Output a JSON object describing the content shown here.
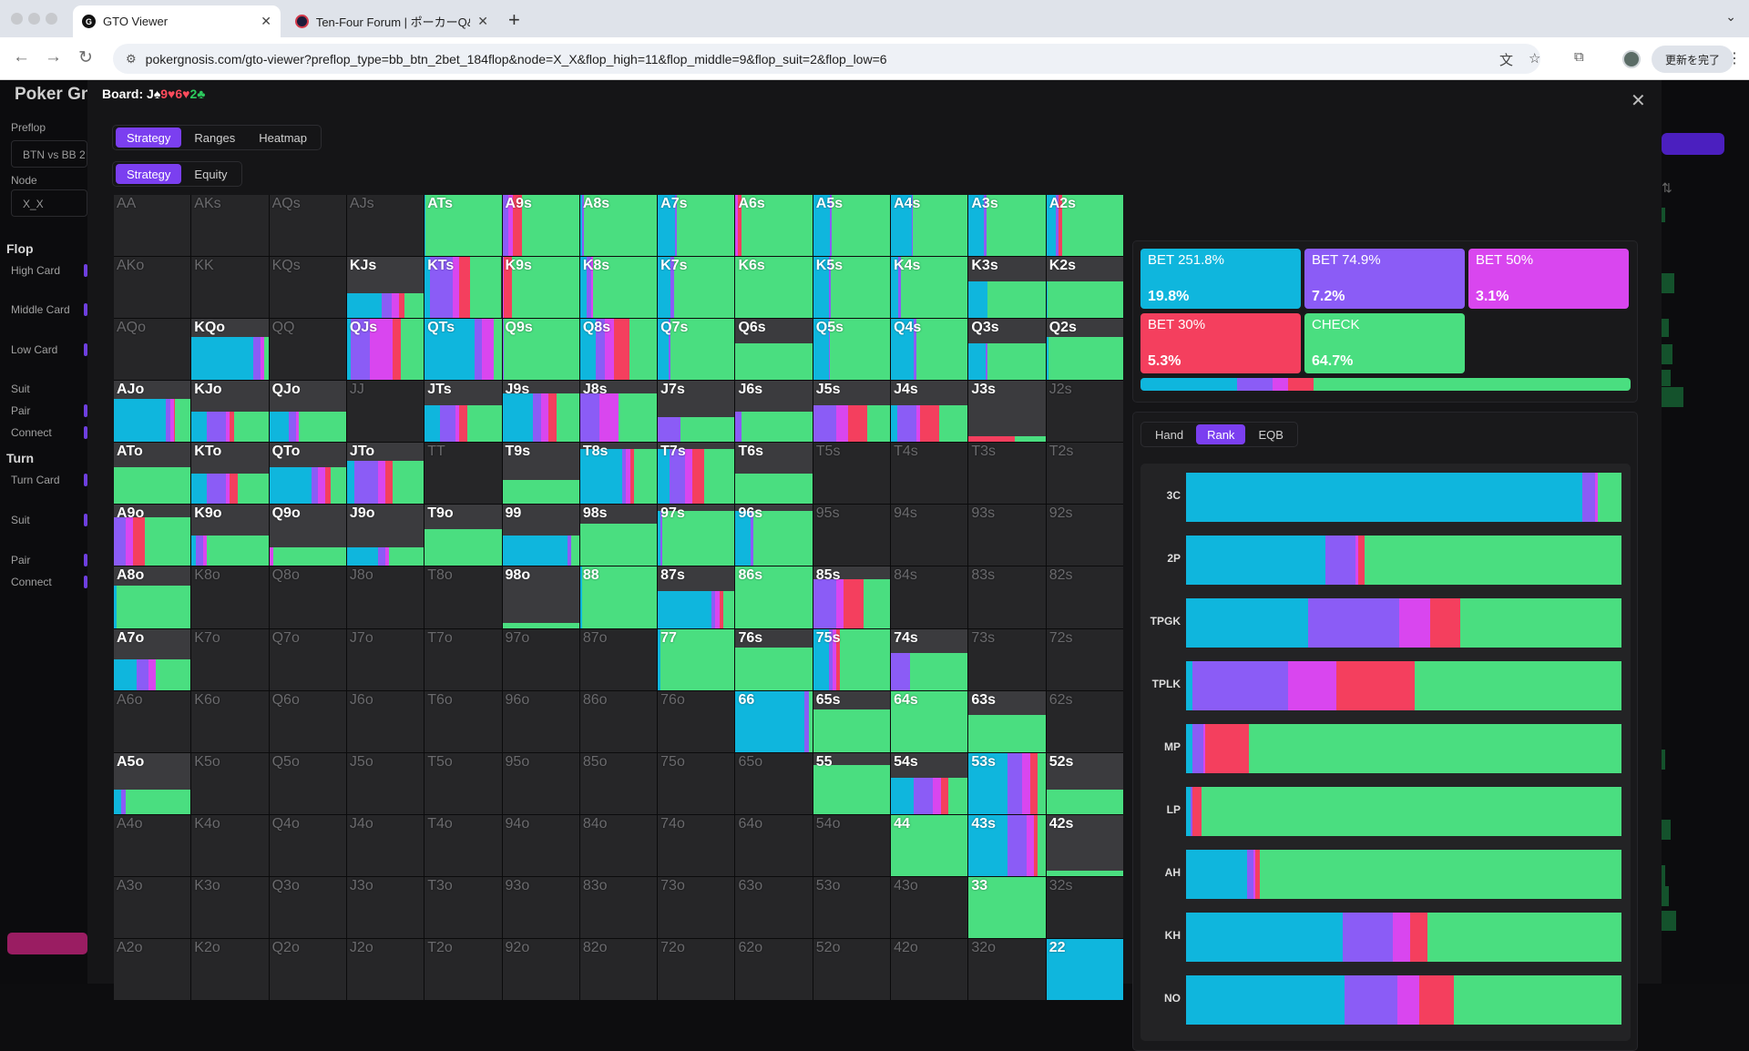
{
  "browser": {
    "tabs": [
      {
        "favicon": "G",
        "title": "GTO Viewer",
        "active": true
      },
      {
        "favicon": "",
        "title": "Ten-Four Forum | ポーカーQ&A",
        "active": false
      }
    ],
    "url": "pokergnosis.com/gto-viewer?preflop_type=bb_btn_2bet_184flop&node=X_X&flop_high=11&flop_middle=9&flop_suit=2&flop_low=6",
    "update_label": "更新を完了"
  },
  "sidebar": {
    "brand": "Poker Gn",
    "preflop_label": "Preflop",
    "preflop_value": "BTN vs BB 2",
    "node_label": "Node",
    "node_value": "X_X",
    "flop_heading": "Flop",
    "flop_items": [
      "High Card",
      "Middle Card",
      "Low Card",
      "Suit",
      "Pair",
      "Connect"
    ],
    "turn_heading": "Turn",
    "turn_items": [
      "Turn Card",
      "Suit",
      "Pair",
      "Connect"
    ]
  },
  "modal": {
    "board_label": "Board:",
    "board_cards": [
      {
        "rank": "J",
        "suit": "♠",
        "color": "#ffffff"
      },
      {
        "rank": "9",
        "suit": "♥",
        "color": "#ff4b5c"
      },
      {
        "rank": "6",
        "suit": "♥",
        "color": "#ff4b5c"
      },
      {
        "rank": "2",
        "suit": "♣",
        "color": "#2cc95d"
      }
    ],
    "view_tabs": [
      "Strategy",
      "Ranges",
      "Heatmap"
    ],
    "view_active": "Strategy",
    "sub_tabs": [
      "Strategy",
      "Equity"
    ],
    "sub_active": "Strategy",
    "rank_tabs": [
      "Hand",
      "Rank",
      "EQB"
    ],
    "rank_active": "Rank"
  },
  "colors": {
    "bet251": "#0fb6dd",
    "bet75": "#8b5cf6",
    "bet50": "#d946ef",
    "bet30": "#f43f5e",
    "check": "#4ade80"
  },
  "actions": [
    {
      "label": "BET 251.8%",
      "pct": "19.8%",
      "freq": 19.8,
      "color": "#0fb6dd"
    },
    {
      "label": "BET 74.9%",
      "pct": "7.2%",
      "freq": 7.2,
      "color": "#8b5cf6"
    },
    {
      "label": "BET 50%",
      "pct": "3.1%",
      "freq": 3.1,
      "color": "#d946ef"
    },
    {
      "label": "BET 30%",
      "pct": "5.3%",
      "freq": 5.3,
      "color": "#f43f5e"
    },
    {
      "label": "CHECK",
      "pct": "64.7%",
      "freq": 64.7,
      "color": "#4ade80"
    }
  ],
  "rank_rows": [
    {
      "label": "3C",
      "mix": [
        91,
        3,
        0.5,
        0,
        5.5
      ]
    },
    {
      "label": "2P",
      "mix": [
        32,
        7,
        0.5,
        1.5,
        59
      ]
    },
    {
      "label": "TPGK",
      "mix": [
        28,
        21,
        7,
        7,
        37
      ]
    },
    {
      "label": "TPLK",
      "mix": [
        1.5,
        22,
        11,
        18,
        47.5
      ]
    },
    {
      "label": "MP",
      "mix": [
        1.5,
        2.5,
        0.5,
        10,
        85.5
      ]
    },
    {
      "label": "LP",
      "mix": [
        1,
        0.5,
        0,
        2,
        96.5
      ]
    },
    {
      "label": "AH",
      "mix": [
        14,
        1.5,
        0.5,
        1,
        83
      ]
    },
    {
      "label": "KH",
      "mix": [
        36,
        11.5,
        4,
        4,
        44.5
      ]
    },
    {
      "label": "NO",
      "mix": [
        36.5,
        12,
        5,
        8,
        38.5
      ]
    }
  ],
  "hands": [
    {
      "n": "AA",
      "f": 0
    },
    {
      "n": "AKs",
      "f": 0
    },
    {
      "n": "AQs",
      "f": 0
    },
    {
      "n": "AJs",
      "f": 0
    },
    {
      "n": "ATs",
      "f": 1,
      "m": [
        1,
        0,
        0,
        0,
        99
      ]
    },
    {
      "n": "A9s",
      "f": 1,
      "m": [
        0,
        8,
        6,
        12,
        74
      ]
    },
    {
      "n": "A8s",
      "f": 1,
      "m": [
        3,
        2,
        0,
        0,
        95
      ]
    },
    {
      "n": "A7s",
      "f": 1,
      "m": [
        22,
        3,
        0,
        0,
        75
      ]
    },
    {
      "n": "A6s",
      "f": 1,
      "m": [
        0,
        0,
        3,
        5,
        92
      ]
    },
    {
      "n": "A5s",
      "f": 1,
      "m": [
        22,
        2,
        0,
        0,
        76
      ]
    },
    {
      "n": "A4s",
      "f": 1,
      "m": [
        27,
        2,
        0,
        0,
        71
      ]
    },
    {
      "n": "A3s",
      "f": 1,
      "m": [
        20,
        3,
        0,
        0,
        77
      ]
    },
    {
      "n": "A2s",
      "f": 1,
      "m": [
        12,
        4,
        0,
        4,
        80
      ]
    },
    {
      "n": "AKo",
      "f": 0
    },
    {
      "n": "KK",
      "f": 0
    },
    {
      "n": "KQs",
      "f": 0
    },
    {
      "n": "KJs",
      "f": 0.4,
      "m": [
        45,
        13,
        10,
        7,
        25
      ]
    },
    {
      "n": "KTs",
      "f": 1,
      "m": [
        7,
        30,
        8,
        14,
        41
      ]
    },
    {
      "n": "K9s",
      "f": 1,
      "m": [
        0,
        0,
        2,
        10,
        88
      ]
    },
    {
      "n": "K8s",
      "f": 1,
      "m": [
        9,
        5,
        3,
        0,
        83
      ]
    },
    {
      "n": "K7s",
      "f": 1,
      "m": [
        17,
        4,
        0,
        0,
        79
      ]
    },
    {
      "n": "K6s",
      "f": 1,
      "m": [
        0,
        0,
        0,
        0,
        100
      ]
    },
    {
      "n": "K5s",
      "f": 1,
      "m": [
        20,
        3,
        0,
        0,
        77
      ]
    },
    {
      "n": "K4s",
      "f": 1,
      "m": [
        10,
        3,
        0,
        0,
        87
      ]
    },
    {
      "n": "K3s",
      "f": 0.6,
      "m": [
        24,
        0,
        0,
        0,
        76
      ]
    },
    {
      "n": "K2s",
      "f": 0.6,
      "m": [
        2,
        0,
        0,
        0,
        98
      ]
    },
    {
      "n": "AQo",
      "f": 0
    },
    {
      "n": "KQo",
      "f": 0.7,
      "m": [
        80,
        10,
        5,
        0,
        5
      ]
    },
    {
      "n": "QQ",
      "f": 0
    },
    {
      "n": "QJs",
      "f": 1,
      "m": [
        5,
        25,
        30,
        10,
        30
      ]
    },
    {
      "n": "QTs",
      "f": 1,
      "m": [
        65,
        10,
        15,
        0,
        10
      ]
    },
    {
      "n": "Q9s",
      "f": 1,
      "m": [
        0,
        2,
        0,
        0,
        98
      ]
    },
    {
      "n": "Q8s",
      "f": 1,
      "m": [
        20,
        12,
        12,
        20,
        36
      ]
    },
    {
      "n": "Q7s",
      "f": 1,
      "m": [
        14,
        2,
        0,
        0,
        84
      ]
    },
    {
      "n": "Q6s",
      "f": 0.6,
      "m": [
        0,
        0,
        0,
        0,
        100
      ]
    },
    {
      "n": "Q5s",
      "f": 1,
      "m": [
        20,
        2,
        0,
        0,
        78
      ]
    },
    {
      "n": "Q4s",
      "f": 1,
      "m": [
        30,
        3,
        0,
        0,
        67
      ]
    },
    {
      "n": "Q3s",
      "f": 0.6,
      "m": [
        22,
        3,
        0,
        0,
        75
      ]
    },
    {
      "n": "Q2s",
      "f": 0.7,
      "m": [
        3,
        0,
        0,
        0,
        97
      ]
    },
    {
      "n": "AJo",
      "f": 0.7,
      "m": [
        68,
        5,
        5,
        2,
        20
      ]
    },
    {
      "n": "KJo",
      "f": 0.5,
      "m": [
        20,
        25,
        5,
        5,
        45
      ]
    },
    {
      "n": "QJo",
      "f": 0.5,
      "m": [
        25,
        10,
        3,
        0,
        62
      ]
    },
    {
      "n": "JJ",
      "f": 0
    },
    {
      "n": "JTs",
      "f": 0.6,
      "m": [
        20,
        20,
        5,
        10,
        45
      ]
    },
    {
      "n": "J9s",
      "f": 0.8,
      "m": [
        40,
        10,
        10,
        10,
        30
      ]
    },
    {
      "n": "J8s",
      "f": 0.8,
      "m": [
        0,
        25,
        25,
        0,
        50
      ]
    },
    {
      "n": "J7s",
      "f": 0.4,
      "m": [
        0,
        30,
        0,
        0,
        70
      ]
    },
    {
      "n": "J6s",
      "f": 0.5,
      "m": [
        0,
        8,
        0,
        0,
        92
      ]
    },
    {
      "n": "J5s",
      "f": 0.6,
      "m": [
        0,
        30,
        15,
        25,
        30
      ]
    },
    {
      "n": "J4s",
      "f": 0.6,
      "m": [
        8,
        25,
        5,
        25,
        37
      ]
    },
    {
      "n": "J3s",
      "f": 0.1,
      "m": [
        0,
        0,
        0,
        60,
        40
      ]
    },
    {
      "n": "J2s",
      "f": 0
    },
    {
      "n": "ATo",
      "f": 0.6,
      "m": [
        0,
        0,
        0,
        0,
        100
      ]
    },
    {
      "n": "KTo",
      "f": 0.5,
      "m": [
        20,
        25,
        5,
        10,
        40
      ]
    },
    {
      "n": "QTo",
      "f": 0.6,
      "m": [
        55,
        8,
        10,
        7,
        20
      ]
    },
    {
      "n": "JTo",
      "f": 0.7,
      "m": [
        10,
        30,
        10,
        10,
        40
      ]
    },
    {
      "n": "TT",
      "f": 0
    },
    {
      "n": "T9s",
      "f": 0.4,
      "m": [
        0,
        0,
        0,
        0,
        100
      ]
    },
    {
      "n": "T8s",
      "f": 0.9,
      "m": [
        55,
        5,
        5,
        5,
        30
      ]
    },
    {
      "n": "T7s",
      "f": 0.9,
      "m": [
        15,
        20,
        10,
        15,
        40
      ]
    },
    {
      "n": "T6s",
      "f": 0.5,
      "m": [
        0,
        0,
        0,
        0,
        100
      ]
    },
    {
      "n": "T5s",
      "f": 0
    },
    {
      "n": "T4s",
      "f": 0
    },
    {
      "n": "T3s",
      "f": 0
    },
    {
      "n": "T2s",
      "f": 0
    },
    {
      "n": "A9o",
      "f": 0.8,
      "m": [
        0,
        15,
        10,
        15,
        60
      ]
    },
    {
      "n": "K9o",
      "f": 0.5,
      "m": [
        5,
        10,
        5,
        0,
        80
      ]
    },
    {
      "n": "Q9o",
      "f": 0.3,
      "m": [
        0,
        0,
        5,
        0,
        95
      ]
    },
    {
      "n": "J9o",
      "f": 0.3,
      "m": [
        40,
        10,
        5,
        0,
        45
      ]
    },
    {
      "n": "T9o",
      "f": 0.6,
      "m": [
        0,
        0,
        0,
        0,
        100
      ]
    },
    {
      "n": "99",
      "f": 0.5,
      "m": [
        85,
        5,
        0,
        0,
        10
      ]
    },
    {
      "n": "98s",
      "f": 0.7,
      "m": [
        0,
        0,
        0,
        0,
        100
      ]
    },
    {
      "n": "97s",
      "f": 0.9,
      "m": [
        3,
        3,
        0,
        0,
        94
      ]
    },
    {
      "n": "96s",
      "f": 0.9,
      "m": [
        20,
        3,
        0,
        0,
        77
      ]
    },
    {
      "n": "95s",
      "f": 0
    },
    {
      "n": "94s",
      "f": 0
    },
    {
      "n": "93s",
      "f": 0
    },
    {
      "n": "92s",
      "f": 0
    },
    {
      "n": "A8o",
      "f": 0.7,
      "m": [
        3,
        0,
        0,
        0,
        97
      ]
    },
    {
      "n": "K8o",
      "f": 0
    },
    {
      "n": "Q8o",
      "f": 0
    },
    {
      "n": "J8o",
      "f": 0
    },
    {
      "n": "T8o",
      "f": 0
    },
    {
      "n": "98o",
      "f": 0.08,
      "m": [
        0,
        0,
        0,
        0,
        100
      ]
    },
    {
      "n": "88",
      "f": 1,
      "m": [
        2,
        0,
        0,
        0,
        98
      ]
    },
    {
      "n": "87s",
      "f": 0.6,
      "m": [
        70,
        5,
        5,
        5,
        15
      ]
    },
    {
      "n": "86s",
      "f": 1,
      "m": [
        0,
        0,
        0,
        0,
        100
      ]
    },
    {
      "n": "85s",
      "f": 0.8,
      "m": [
        0,
        30,
        10,
        25,
        35
      ]
    },
    {
      "n": "84s",
      "f": 0
    },
    {
      "n": "83s",
      "f": 0
    },
    {
      "n": "82s",
      "f": 0
    },
    {
      "n": "A7o",
      "f": 0.5,
      "m": [
        30,
        15,
        10,
        0,
        45
      ]
    },
    {
      "n": "K7o",
      "f": 0
    },
    {
      "n": "Q7o",
      "f": 0
    },
    {
      "n": "J7o",
      "f": 0
    },
    {
      "n": "T7o",
      "f": 0
    },
    {
      "n": "97o",
      "f": 0
    },
    {
      "n": "87o",
      "f": 0
    },
    {
      "n": "77",
      "f": 1,
      "m": [
        3,
        0,
        0,
        0,
        97
      ]
    },
    {
      "n": "76s",
      "f": 0.7,
      "m": [
        0,
        0,
        0,
        0,
        100
      ]
    },
    {
      "n": "75s",
      "f": 1,
      "m": [
        20,
        5,
        5,
        5,
        65
      ]
    },
    {
      "n": "74s",
      "f": 0.6,
      "m": [
        0,
        25,
        0,
        0,
        75
      ]
    },
    {
      "n": "73s",
      "f": 0
    },
    {
      "n": "72s",
      "f": 0
    },
    {
      "n": "A6o",
      "f": 0
    },
    {
      "n": "K6o",
      "f": 0
    },
    {
      "n": "Q6o",
      "f": 0
    },
    {
      "n": "J6o",
      "f": 0
    },
    {
      "n": "T6o",
      "f": 0
    },
    {
      "n": "96o",
      "f": 0
    },
    {
      "n": "86o",
      "f": 0
    },
    {
      "n": "76o",
      "f": 0
    },
    {
      "n": "66",
      "f": 1,
      "m": [
        90,
        5,
        0,
        0,
        5
      ]
    },
    {
      "n": "65s",
      "f": 0.7,
      "m": [
        0,
        0,
        0,
        0,
        100
      ]
    },
    {
      "n": "64s",
      "f": 1,
      "m": [
        0,
        0,
        0,
        0,
        100
      ]
    },
    {
      "n": "63s",
      "f": 0.6,
      "m": [
        0,
        0,
        0,
        0,
        100
      ]
    },
    {
      "n": "62s",
      "f": 0
    },
    {
      "n": "A5o",
      "f": 0.4,
      "m": [
        10,
        5,
        0,
        0,
        85
      ]
    },
    {
      "n": "K5o",
      "f": 0
    },
    {
      "n": "Q5o",
      "f": 0
    },
    {
      "n": "J5o",
      "f": 0
    },
    {
      "n": "T5o",
      "f": 0
    },
    {
      "n": "95o",
      "f": 0
    },
    {
      "n": "85o",
      "f": 0
    },
    {
      "n": "75o",
      "f": 0
    },
    {
      "n": "65o",
      "f": 0
    },
    {
      "n": "55",
      "f": 0.8,
      "m": [
        0,
        0,
        0,
        0,
        100
      ]
    },
    {
      "n": "54s",
      "f": 0.6,
      "m": [
        30,
        25,
        10,
        10,
        25
      ]
    },
    {
      "n": "53s",
      "f": 1,
      "m": [
        50,
        20,
        10,
        10,
        10
      ]
    },
    {
      "n": "52s",
      "f": 0.4,
      "m": [
        0,
        0,
        0,
        0,
        100
      ]
    },
    {
      "n": "A4o",
      "f": 0
    },
    {
      "n": "K4o",
      "f": 0
    },
    {
      "n": "Q4o",
      "f": 0
    },
    {
      "n": "J4o",
      "f": 0
    },
    {
      "n": "T4o",
      "f": 0
    },
    {
      "n": "94o",
      "f": 0
    },
    {
      "n": "84o",
      "f": 0
    },
    {
      "n": "74o",
      "f": 0
    },
    {
      "n": "64o",
      "f": 0
    },
    {
      "n": "54o",
      "f": 0
    },
    {
      "n": "44",
      "f": 1,
      "m": [
        0,
        0,
        0,
        0,
        100
      ]
    },
    {
      "n": "43s",
      "f": 1,
      "m": [
        50,
        25,
        10,
        5,
        10
      ]
    },
    {
      "n": "42s",
      "f": 0.08,
      "m": [
        0,
        0,
        0,
        0,
        100
      ]
    },
    {
      "n": "A3o",
      "f": 0
    },
    {
      "n": "K3o",
      "f": 0
    },
    {
      "n": "Q3o",
      "f": 0
    },
    {
      "n": "J3o",
      "f": 0
    },
    {
      "n": "T3o",
      "f": 0
    },
    {
      "n": "93o",
      "f": 0
    },
    {
      "n": "83o",
      "f": 0
    },
    {
      "n": "73o",
      "f": 0
    },
    {
      "n": "63o",
      "f": 0
    },
    {
      "n": "53o",
      "f": 0
    },
    {
      "n": "43o",
      "f": 0
    },
    {
      "n": "33",
      "f": 1,
      "m": [
        0,
        0,
        0,
        0,
        100
      ]
    },
    {
      "n": "32s",
      "f": 0
    },
    {
      "n": "A2o",
      "f": 0
    },
    {
      "n": "K2o",
      "f": 0
    },
    {
      "n": "Q2o",
      "f": 0
    },
    {
      "n": "J2o",
      "f": 0
    },
    {
      "n": "T2o",
      "f": 0
    },
    {
      "n": "92o",
      "f": 0
    },
    {
      "n": "82o",
      "f": 0
    },
    {
      "n": "72o",
      "f": 0
    },
    {
      "n": "62o",
      "f": 0
    },
    {
      "n": "52o",
      "f": 0
    },
    {
      "n": "42o",
      "f": 0
    },
    {
      "n": "32o",
      "f": 0
    },
    {
      "n": "22",
      "f": 1,
      "m": [
        100,
        0,
        0,
        0,
        0
      ]
    }
  ]
}
